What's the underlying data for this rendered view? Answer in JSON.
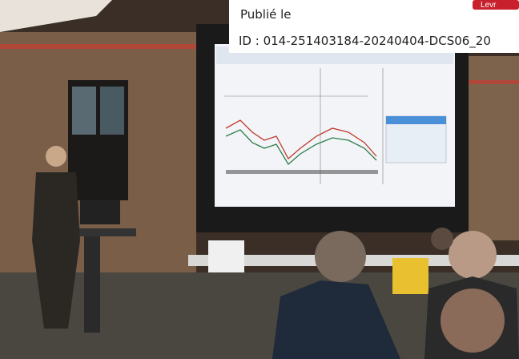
{
  "stamp": {
    "published": "Publié le",
    "id": "ID : 014-251403184-20240404-DCS06_20",
    "badge": "Levr"
  }
}
